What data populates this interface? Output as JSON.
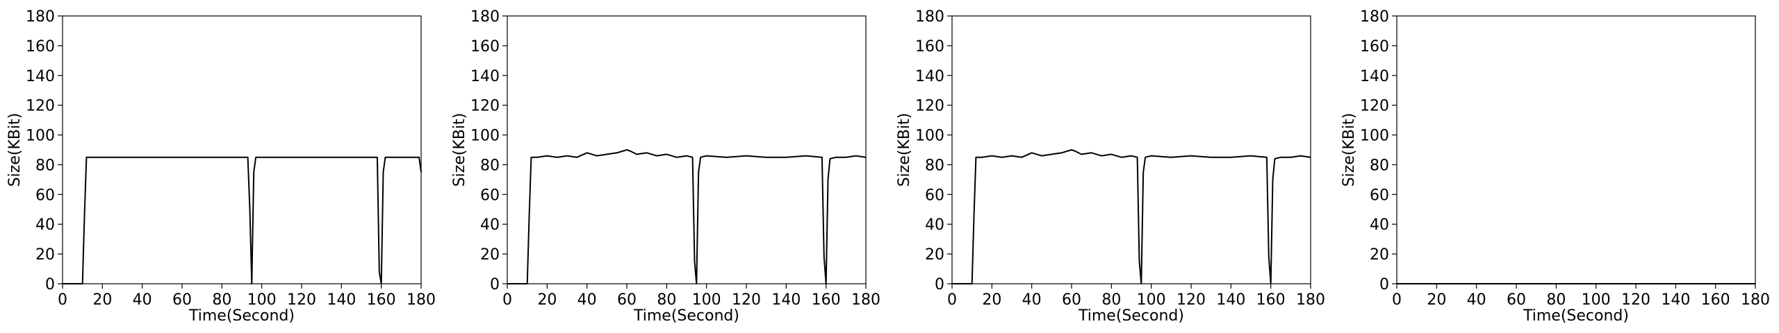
{
  "chart_data": [
    {
      "type": "line",
      "xlabel": "Time(Second)",
      "ylabel": "Size(KBit)",
      "xlim": [
        0,
        180
      ],
      "ylim": [
        0,
        180
      ],
      "xticks": [
        0,
        20,
        40,
        60,
        80,
        100,
        120,
        140,
        160,
        180
      ],
      "yticks": [
        0,
        20,
        40,
        60,
        80,
        100,
        120,
        140,
        160,
        180
      ],
      "grid": false,
      "line_color": "#000000",
      "series": [
        {
          "x": [
            0,
            10,
            11,
            12,
            13,
            93,
            94,
            95,
            96,
            97,
            158,
            159,
            160,
            161,
            162,
            163,
            178,
            179,
            180
          ],
          "y": [
            0,
            0,
            45,
            85,
            85,
            85,
            50,
            0,
            75,
            85,
            85,
            8,
            0,
            75,
            85,
            85,
            85,
            85,
            75
          ]
        }
      ]
    },
    {
      "type": "line",
      "xlabel": "Time(Second)",
      "ylabel": "Size(KBit)",
      "xlim": [
        0,
        180
      ],
      "ylim": [
        0,
        180
      ],
      "xticks": [
        0,
        20,
        40,
        60,
        80,
        100,
        120,
        140,
        160,
        180
      ],
      "yticks": [
        0,
        20,
        40,
        60,
        80,
        100,
        120,
        140,
        160,
        180
      ],
      "grid": false,
      "line_color": "#000000",
      "series": [
        {
          "x": [
            0,
            10,
            11,
            12,
            15,
            20,
            25,
            30,
            35,
            40,
            45,
            50,
            55,
            60,
            62,
            65,
            70,
            75,
            80,
            85,
            90,
            93,
            94,
            95,
            96,
            97,
            100,
            110,
            120,
            130,
            140,
            150,
            158,
            159,
            160,
            161,
            162,
            165,
            170,
            175,
            180
          ],
          "y": [
            0,
            0,
            45,
            85,
            85,
            86,
            85,
            86,
            85,
            88,
            86,
            87,
            88,
            90,
            89,
            87,
            88,
            86,
            87,
            85,
            86,
            85,
            15,
            0,
            75,
            85,
            86,
            85,
            86,
            85,
            85,
            86,
            85,
            18,
            0,
            70,
            84,
            85,
            85,
            86,
            85
          ]
        }
      ]
    },
    {
      "type": "line",
      "xlabel": "Time(Second)",
      "ylabel": "Size(KBit)",
      "xlim": [
        0,
        180
      ],
      "ylim": [
        0,
        180
      ],
      "xticks": [
        0,
        20,
        40,
        60,
        80,
        100,
        120,
        140,
        160,
        180
      ],
      "yticks": [
        0,
        20,
        40,
        60,
        80,
        100,
        120,
        140,
        160,
        180
      ],
      "grid": false,
      "line_color": "#000000",
      "series": [
        {
          "x": [
            0,
            10,
            11,
            12,
            15,
            20,
            25,
            30,
            35,
            40,
            45,
            50,
            55,
            60,
            62,
            65,
            70,
            75,
            80,
            85,
            90,
            93,
            94,
            95,
            96,
            97,
            100,
            110,
            120,
            130,
            140,
            150,
            158,
            159,
            160,
            161,
            162,
            165,
            170,
            175,
            180
          ],
          "y": [
            0,
            0,
            45,
            85,
            85,
            86,
            85,
            86,
            85,
            88,
            86,
            87,
            88,
            90,
            89,
            87,
            88,
            86,
            87,
            85,
            86,
            85,
            15,
            0,
            75,
            85,
            86,
            85,
            86,
            85,
            85,
            86,
            85,
            18,
            0,
            70,
            84,
            85,
            85,
            86,
            85
          ]
        }
      ]
    },
    {
      "type": "line",
      "xlabel": "Time(Second)",
      "ylabel": "Size(KBit)",
      "xlim": [
        0,
        180
      ],
      "ylim": [
        0,
        180
      ],
      "xticks": [
        0,
        20,
        40,
        60,
        80,
        100,
        120,
        140,
        160,
        180
      ],
      "yticks": [
        0,
        20,
        40,
        60,
        80,
        100,
        120,
        140,
        160,
        180
      ],
      "grid": false,
      "line_color": "#000000",
      "series": [
        {
          "x": [
            0,
            180
          ],
          "y": [
            0,
            0
          ]
        }
      ]
    }
  ]
}
